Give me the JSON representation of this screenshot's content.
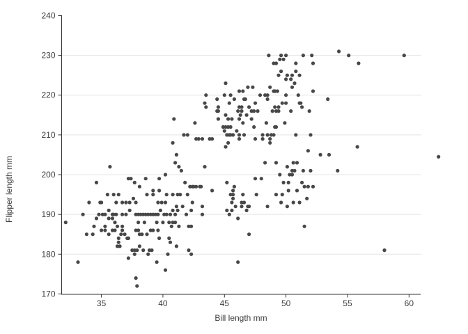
{
  "chart_data": {
    "type": "scatter",
    "title": "",
    "xlabel": "Bill length mm",
    "ylabel": "Flipper length mm",
    "x_ticks": [
      35,
      40,
      45,
      50,
      55,
      60
    ],
    "y_ticks": [
      170,
      180,
      190,
      200,
      210,
      220,
      230,
      240
    ],
    "y_grid": [
      180,
      190,
      200,
      210,
      220,
      230
    ],
    "xlim": [
      31.77,
      61.0
    ],
    "ylim": [
      169.9,
      240.1
    ],
    "grid": "horizontal-only",
    "legend": "none",
    "point_color": "#474747",
    "grid_color": "#e4e4e4",
    "axis_color": "#333333",
    "background_color": "#ffffff",
    "points": [
      [
        32.1,
        188
      ],
      [
        33.1,
        178
      ],
      [
        33.5,
        190
      ],
      [
        33.8,
        185
      ],
      [
        34.0,
        193
      ],
      [
        34.3,
        185
      ],
      [
        34.4,
        187
      ],
      [
        34.6,
        189
      ],
      [
        34.6,
        198
      ],
      [
        34.8,
        190
      ],
      [
        34.9,
        193
      ],
      [
        35.0,
        186
      ],
      [
        35.0,
        193
      ],
      [
        35.1,
        190
      ],
      [
        35.3,
        186
      ],
      [
        35.3,
        187
      ],
      [
        35.3,
        190
      ],
      [
        35.5,
        195
      ],
      [
        35.6,
        185
      ],
      [
        35.6,
        189
      ],
      [
        35.6,
        191
      ],
      [
        35.7,
        202
      ],
      [
        35.9,
        186
      ],
      [
        35.9,
        189
      ],
      [
        35.9,
        190
      ],
      [
        36.0,
        190
      ],
      [
        36.0,
        195
      ],
      [
        36.1,
        186
      ],
      [
        36.1,
        188
      ],
      [
        36.2,
        190
      ],
      [
        36.2,
        193
      ],
      [
        36.3,
        182
      ],
      [
        36.3,
        187
      ],
      [
        36.4,
        183
      ],
      [
        36.4,
        184
      ],
      [
        36.4,
        195
      ],
      [
        36.5,
        182
      ],
      [
        36.6,
        185
      ],
      [
        36.7,
        186
      ],
      [
        36.7,
        187
      ],
      [
        36.7,
        190
      ],
      [
        36.7,
        193
      ],
      [
        36.9,
        185
      ],
      [
        37.0,
        190
      ],
      [
        37.0,
        193
      ],
      [
        37.1,
        184
      ],
      [
        37.2,
        179
      ],
      [
        37.2,
        184
      ],
      [
        37.2,
        199
      ],
      [
        37.3,
        191
      ],
      [
        37.3,
        193
      ],
      [
        37.4,
        199
      ],
      [
        37.5,
        181
      ],
      [
        37.6,
        194
      ],
      [
        37.7,
        180
      ],
      [
        37.7,
        181
      ],
      [
        37.7,
        198
      ],
      [
        37.8,
        174
      ],
      [
        37.8,
        186
      ],
      [
        37.8,
        190
      ],
      [
        37.8,
        193
      ],
      [
        37.9,
        172
      ],
      [
        37.9,
        181
      ],
      [
        38.0,
        186
      ],
      [
        38.0,
        188
      ],
      [
        38.0,
        190
      ],
      [
        38.1,
        182
      ],
      [
        38.1,
        185
      ],
      [
        38.1,
        197
      ],
      [
        38.2,
        190
      ],
      [
        38.3,
        185
      ],
      [
        38.4,
        181
      ],
      [
        38.4,
        190
      ],
      [
        38.5,
        188
      ],
      [
        38.6,
        190
      ],
      [
        38.6,
        199
      ],
      [
        38.7,
        185
      ],
      [
        38.7,
        195
      ],
      [
        38.8,
        180
      ],
      [
        38.8,
        190
      ],
      [
        38.9,
        181
      ],
      [
        39.0,
        186
      ],
      [
        39.0,
        190
      ],
      [
        39.1,
        181
      ],
      [
        39.2,
        186
      ],
      [
        39.2,
        190
      ],
      [
        39.2,
        195
      ],
      [
        39.2,
        196
      ],
      [
        39.4,
        190
      ],
      [
        39.5,
        178
      ],
      [
        39.5,
        188
      ],
      [
        39.6,
        186
      ],
      [
        39.6,
        190
      ],
      [
        39.6,
        193
      ],
      [
        39.7,
        184
      ],
      [
        39.7,
        196
      ],
      [
        39.7,
        199
      ],
      [
        39.8,
        191
      ],
      [
        39.9,
        193
      ],
      [
        40.0,
        188
      ],
      [
        40.1,
        190
      ],
      [
        40.2,
        176
      ],
      [
        40.2,
        193
      ],
      [
        40.2,
        200
      ],
      [
        40.3,
        190
      ],
      [
        40.3,
        195
      ],
      [
        40.4,
        180
      ],
      [
        40.5,
        184
      ],
      [
        40.5,
        188
      ],
      [
        40.6,
        183
      ],
      [
        40.6,
        190
      ],
      [
        40.7,
        187
      ],
      [
        40.8,
        188
      ],
      [
        40.8,
        191
      ],
      [
        40.8,
        195
      ],
      [
        40.8,
        208
      ],
      [
        40.9,
        214
      ],
      [
        41.0,
        188
      ],
      [
        41.0,
        190
      ],
      [
        41.0,
        203
      ],
      [
        41.1,
        182
      ],
      [
        41.1,
        192
      ],
      [
        41.1,
        205
      ],
      [
        41.2,
        191
      ],
      [
        41.2,
        195
      ],
      [
        41.3,
        187
      ],
      [
        41.3,
        202
      ],
      [
        41.4,
        195
      ],
      [
        41.5,
        201
      ],
      [
        41.6,
        192
      ],
      [
        41.7,
        210
      ],
      [
        41.8,
        198
      ],
      [
        41.9,
        190
      ],
      [
        42.0,
        195
      ],
      [
        42.0,
        210
      ],
      [
        42.1,
        181
      ],
      [
        42.1,
        187
      ],
      [
        42.2,
        197
      ],
      [
        42.3,
        180
      ],
      [
        42.3,
        187
      ],
      [
        42.3,
        191
      ],
      [
        42.4,
        193
      ],
      [
        42.4,
        197
      ],
      [
        42.5,
        197
      ],
      [
        42.6,
        213
      ],
      [
        42.7,
        197
      ],
      [
        42.7,
        209
      ],
      [
        42.9,
        209
      ],
      [
        43.0,
        197
      ],
      [
        43.1,
        197
      ],
      [
        43.2,
        190
      ],
      [
        43.2,
        192
      ],
      [
        43.2,
        209
      ],
      [
        43.4,
        202
      ],
      [
        43.4,
        218
      ],
      [
        43.5,
        217
      ],
      [
        43.5,
        220
      ],
      [
        43.8,
        209
      ],
      [
        44.0,
        196
      ],
      [
        44.0,
        209
      ],
      [
        44.4,
        216
      ],
      [
        44.4,
        219
      ],
      [
        44.5,
        214
      ],
      [
        44.5,
        216
      ],
      [
        44.5,
        217
      ],
      [
        44.9,
        212
      ],
      [
        44.9,
        212
      ],
      [
        45.0,
        211
      ],
      [
        45.0,
        220
      ],
      [
        45.1,
        207
      ],
      [
        45.1,
        212
      ],
      [
        45.1,
        215
      ],
      [
        45.1,
        223
      ],
      [
        45.2,
        191
      ],
      [
        45.2,
        198
      ],
      [
        45.2,
        210
      ],
      [
        45.3,
        208
      ],
      [
        45.3,
        212
      ],
      [
        45.3,
        214
      ],
      [
        45.4,
        190
      ],
      [
        45.4,
        210
      ],
      [
        45.4,
        218
      ],
      [
        45.5,
        195
      ],
      [
        45.5,
        210
      ],
      [
        45.5,
        212
      ],
      [
        45.5,
        220
      ],
      [
        45.6,
        191
      ],
      [
        45.6,
        193
      ],
      [
        45.6,
        214
      ],
      [
        45.7,
        194
      ],
      [
        45.7,
        195
      ],
      [
        45.7,
        196
      ],
      [
        45.7,
        210
      ],
      [
        45.8,
        197
      ],
      [
        45.8,
        219
      ],
      [
        45.9,
        192
      ],
      [
        46.0,
        211
      ],
      [
        46.1,
        178
      ],
      [
        46.1,
        189
      ],
      [
        46.1,
        216
      ],
      [
        46.2,
        209
      ],
      [
        46.2,
        210
      ],
      [
        46.2,
        214
      ],
      [
        46.2,
        217
      ],
      [
        46.2,
        221
      ],
      [
        46.3,
        215
      ],
      [
        46.4,
        192
      ],
      [
        46.4,
        193
      ],
      [
        46.4,
        216
      ],
      [
        46.4,
        217
      ],
      [
        46.5,
        195
      ],
      [
        46.5,
        213
      ],
      [
        46.5,
        221
      ],
      [
        46.6,
        193
      ],
      [
        46.6,
        210
      ],
      [
        46.6,
        219
      ],
      [
        46.7,
        219
      ],
      [
        46.8,
        191
      ],
      [
        46.8,
        215
      ],
      [
        46.9,
        192
      ],
      [
        46.9,
        222
      ],
      [
        47.0,
        185
      ],
      [
        47.0,
        192
      ],
      [
        47.0,
        217
      ],
      [
        47.2,
        214
      ],
      [
        47.2,
        216
      ],
      [
        47.3,
        222
      ],
      [
        47.4,
        212
      ],
      [
        47.4,
        216
      ],
      [
        47.5,
        199
      ],
      [
        47.5,
        209
      ],
      [
        47.5,
        218
      ],
      [
        47.6,
        195
      ],
      [
        47.7,
        216
      ],
      [
        47.9,
        220
      ],
      [
        48.0,
        199
      ],
      [
        48.1,
        209
      ],
      [
        48.1,
        210
      ],
      [
        48.3,
        203
      ],
      [
        48.3,
        220
      ],
      [
        48.4,
        213
      ],
      [
        48.5,
        192
      ],
      [
        48.5,
        210
      ],
      [
        48.5,
        219
      ],
      [
        48.5,
        220
      ],
      [
        48.6,
        230
      ],
      [
        48.7,
        208
      ],
      [
        48.7,
        209
      ],
      [
        48.7,
        222
      ],
      [
        48.8,
        210
      ],
      [
        48.9,
        216
      ],
      [
        49.0,
        210
      ],
      [
        49.0,
        221
      ],
      [
        49.0,
        228
      ],
      [
        49.1,
        212
      ],
      [
        49.1,
        217
      ],
      [
        49.1,
        221
      ],
      [
        49.2,
        195
      ],
      [
        49.2,
        203
      ],
      [
        49.2,
        212
      ],
      [
        49.2,
        216
      ],
      [
        49.2,
        228
      ],
      [
        49.3,
        221
      ],
      [
        49.4,
        216
      ],
      [
        49.4,
        217
      ],
      [
        49.4,
        225
      ],
      [
        49.5,
        200
      ],
      [
        49.5,
        229
      ],
      [
        49.6,
        193
      ],
      [
        49.6,
        226
      ],
      [
        49.6,
        230
      ],
      [
        49.7,
        195
      ],
      [
        49.7,
        218
      ],
      [
        49.8,
        198
      ],
      [
        49.8,
        229
      ],
      [
        49.9,
        213
      ],
      [
        50.0,
        218
      ],
      [
        50.0,
        220
      ],
      [
        50.0,
        224
      ],
      [
        50.0,
        230
      ],
      [
        50.1,
        192
      ],
      [
        50.1,
        202
      ],
      [
        50.1,
        225
      ],
      [
        50.2,
        196
      ],
      [
        50.2,
        198
      ],
      [
        50.3,
        200
      ],
      [
        50.4,
        216
      ],
      [
        50.4,
        224
      ],
      [
        50.5,
        200
      ],
      [
        50.5,
        201
      ],
      [
        50.5,
        222
      ],
      [
        50.5,
        225
      ],
      [
        50.6,
        193
      ],
      [
        50.6,
        203
      ],
      [
        50.7,
        201
      ],
      [
        50.7,
        223
      ],
      [
        50.8,
        210
      ],
      [
        50.8,
        226
      ],
      [
        50.8,
        228
      ],
      [
        50.9,
        196
      ],
      [
        50.9,
        203
      ],
      [
        51.0,
        220
      ],
      [
        51.1,
        193
      ],
      [
        51.1,
        218
      ],
      [
        51.1,
        225
      ],
      [
        51.2,
        218
      ],
      [
        51.3,
        198
      ],
      [
        51.3,
        217
      ],
      [
        51.4,
        201
      ],
      [
        51.4,
        230
      ],
      [
        51.5,
        187
      ],
      [
        51.5,
        197
      ],
      [
        51.7,
        194
      ],
      [
        51.8,
        197
      ],
      [
        51.8,
        206
      ],
      [
        51.9,
        216
      ],
      [
        52.0,
        201
      ],
      [
        52.0,
        210
      ],
      [
        52.1,
        230
      ],
      [
        52.2,
        197
      ],
      [
        52.2,
        221
      ],
      [
        52.2,
        228
      ],
      [
        52.8,
        205
      ],
      [
        53.4,
        219
      ],
      [
        53.5,
        205
      ],
      [
        54.2,
        201
      ],
      [
        54.3,
        231
      ],
      [
        55.1,
        230
      ],
      [
        55.8,
        207
      ],
      [
        55.9,
        228
      ],
      [
        58.0,
        181
      ],
      [
        59.6,
        230
      ],
      [
        62.4,
        204.5
      ]
    ]
  }
}
